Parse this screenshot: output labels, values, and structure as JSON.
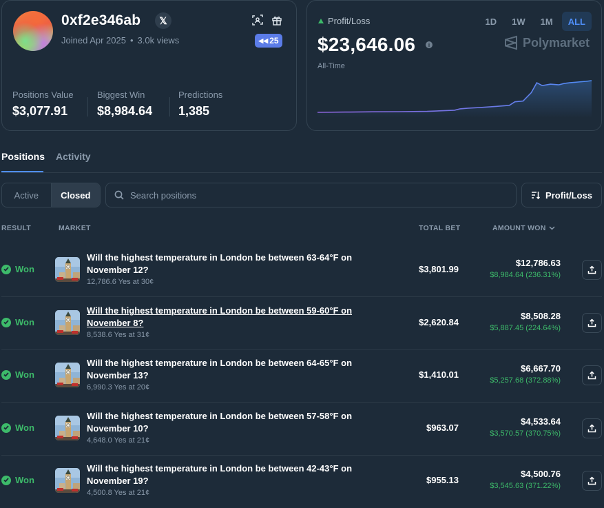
{
  "profile": {
    "username": "0xf2e346ab",
    "joined": "Joined Apr 2025",
    "views": "3.0k views",
    "badge_count": "25",
    "stats": [
      {
        "label": "Positions Value",
        "value": "$3,077.91"
      },
      {
        "label": "Biggest Win",
        "value": "$8,984.64"
      },
      {
        "label": "Predictions",
        "value": "1,385"
      }
    ]
  },
  "pnl": {
    "label": "Profit/Loss",
    "value": "$23,646.06",
    "period": "All-Time",
    "ranges": [
      "1D",
      "1W",
      "1M",
      "ALL"
    ],
    "active_range": "ALL",
    "brand": "Polymarket",
    "accent_color": "#4f8ef7",
    "chart_data": {
      "type": "area",
      "x": [
        0,
        10,
        20,
        30,
        40,
        50,
        52,
        55,
        60,
        65,
        70,
        72,
        75,
        78,
        80,
        82,
        85,
        88,
        90,
        92,
        95,
        98,
        100
      ],
      "y": [
        0,
        200,
        400,
        500,
        700,
        1500,
        2500,
        3000,
        3500,
        4200,
        5000,
        7500,
        8000,
        14000,
        21000,
        19000,
        20000,
        19500,
        20500,
        21000,
        21500,
        22000,
        22500
      ]
    }
  },
  "tabs": [
    "Positions",
    "Activity"
  ],
  "filters": {
    "segments": [
      "Active",
      "Closed"
    ],
    "active_segment": "Closed",
    "search_placeholder": "Search positions",
    "sort_label": "Profit/Loss"
  },
  "table": {
    "headers": {
      "result": "RESULT",
      "market": "MARKET",
      "total_bet": "TOTAL BET",
      "amount_won": "AMOUNT WON"
    },
    "rows": [
      {
        "result": "Won",
        "title": "Will the highest temperature in London be between 63-64°F on November 12?",
        "sub": "12,786.6 Yes at 30¢",
        "total_bet": "$3,801.99",
        "amount_won": "$12,786.63",
        "profit": "$8,984.64 (236.31%)"
      },
      {
        "result": "Won",
        "title": "Will the highest temperature in London be between 59-60°F on November 8?",
        "sub": "8,538.6 Yes at 31¢",
        "total_bet": "$2,620.84",
        "amount_won": "$8,508.28",
        "profit": "$5,887.45 (224.64%)"
      },
      {
        "result": "Won",
        "title": "Will the highest temperature in London be between 64-65°F on November 13?",
        "sub": "6,990.3 Yes at 20¢",
        "total_bet": "$1,410.01",
        "amount_won": "$6,667.70",
        "profit": "$5,257.68 (372.88%)"
      },
      {
        "result": "Won",
        "title": "Will the highest temperature in London be between 57-58°F on November 10?",
        "sub": "4,648.0 Yes at 21¢",
        "total_bet": "$963.07",
        "amount_won": "$4,533.64",
        "profit": "$3,570.57 (370.75%)"
      },
      {
        "result": "Won",
        "title": "Will the highest temperature in London be between 42-43°F on November 19?",
        "sub": "4,500.8 Yes at 21¢",
        "total_bet": "$955.13",
        "amount_won": "$4,500.76",
        "profit": "$3,545.63 (371.22%)"
      }
    ]
  }
}
